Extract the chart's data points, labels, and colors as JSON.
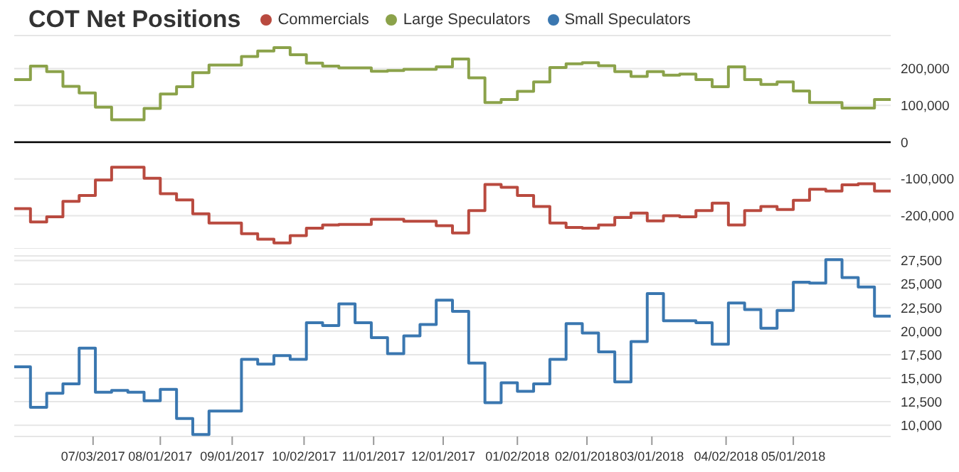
{
  "chart_data": [
    {
      "type": "step",
      "title": "COT Net Positions",
      "x": [
        "2017-05-30",
        "2017-06-06",
        "2017-06-13",
        "2017-06-20",
        "2017-06-27",
        "2017-07-04",
        "2017-07-11",
        "2017-07-18",
        "2017-07-25",
        "2017-08-01",
        "2017-08-08",
        "2017-08-15",
        "2017-08-22",
        "2017-08-29",
        "2017-09-05",
        "2017-09-12",
        "2017-09-19",
        "2017-09-26",
        "2017-10-03",
        "2017-10-10",
        "2017-10-17",
        "2017-10-24",
        "2017-10-31",
        "2017-11-07",
        "2017-11-14",
        "2017-11-21",
        "2017-11-28",
        "2017-12-05",
        "2017-12-12",
        "2017-12-19",
        "2017-12-26",
        "2018-01-02",
        "2018-01-09",
        "2018-01-16",
        "2018-01-23",
        "2018-01-30",
        "2018-02-06",
        "2018-02-13",
        "2018-02-20",
        "2018-02-27",
        "2018-03-06",
        "2018-03-13",
        "2018-03-20",
        "2018-03-27",
        "2018-04-03",
        "2018-04-10",
        "2018-04-17",
        "2018-04-24",
        "2018-05-01",
        "2018-05-08",
        "2018-05-15",
        "2018-05-22",
        "2018-05-29",
        "2018-06-05",
        "2018-06-12"
      ],
      "series": [
        {
          "name": "Commercials",
          "color": "#b94a3f",
          "values": [
            -181000,
            -217000,
            -203000,
            -161000,
            -145000,
            -103000,
            -68000,
            -68000,
            -98000,
            -140000,
            -157000,
            -195000,
            -220000,
            -220000,
            -249000,
            -264000,
            -274000,
            -254000,
            -234000,
            -225000,
            -224000,
            -224000,
            -210000,
            -210000,
            -215000,
            -215000,
            -227000,
            -247000,
            -186000,
            -115000,
            -123000,
            -145000,
            -175000,
            -220000,
            -232000,
            -234000,
            -225000,
            -205000,
            -193000,
            -214000,
            -200000,
            -203000,
            -186000,
            -166000,
            -225000,
            -186000,
            -175000,
            -183000,
            -158000,
            -128000,
            -133000,
            -116000,
            -113000,
            -133000,
            -133000
          ]
        },
        {
          "name": "Large Speculators",
          "color": "#8ba24a",
          "values": [
            170000,
            207000,
            192000,
            152000,
            134000,
            95000,
            61000,
            61000,
            92000,
            131000,
            151000,
            189000,
            210000,
            210000,
            233000,
            248000,
            257000,
            238000,
            215000,
            207000,
            202000,
            202000,
            193000,
            195000,
            198000,
            198000,
            205000,
            226000,
            175000,
            108000,
            116000,
            138000,
            164000,
            203000,
            213000,
            216000,
            208000,
            192000,
            179000,
            192000,
            182000,
            185000,
            170000,
            151000,
            205000,
            170000,
            157000,
            164000,
            139000,
            108000,
            108000,
            93000,
            93000,
            116000,
            116000
          ]
        }
      ],
      "xlim": [
        "2017-05-30",
        "2018-06-12"
      ],
      "ylim": [
        -290000,
        290000
      ],
      "yticks": [
        {
          "value": -200000,
          "label": "-200,000"
        },
        {
          "value": -100000,
          "label": "-100,000"
        },
        0,
        {
          "value": 100000,
          "label": "100,000"
        },
        {
          "value": 200000,
          "label": "200,000"
        }
      ],
      "ref_lines": [
        {
          "axis": "y",
          "value": 0,
          "color": "#000000"
        }
      ],
      "grid": "y",
      "legend": "top",
      "marker": "none",
      "line_style": "solid",
      "tick_labels": "y"
    },
    {
      "type": "step",
      "x": [
        "2017-05-30",
        "2017-06-06",
        "2017-06-13",
        "2017-06-20",
        "2017-06-27",
        "2017-07-04",
        "2017-07-11",
        "2017-07-18",
        "2017-07-25",
        "2017-08-01",
        "2017-08-08",
        "2017-08-15",
        "2017-08-22",
        "2017-08-29",
        "2017-09-05",
        "2017-09-12",
        "2017-09-19",
        "2017-09-26",
        "2017-10-03",
        "2017-10-10",
        "2017-10-17",
        "2017-10-24",
        "2017-10-31",
        "2017-11-07",
        "2017-11-14",
        "2017-11-21",
        "2017-11-28",
        "2017-12-05",
        "2017-12-12",
        "2017-12-19",
        "2017-12-26",
        "2018-01-02",
        "2018-01-09",
        "2018-01-16",
        "2018-01-23",
        "2018-01-30",
        "2018-02-06",
        "2018-02-13",
        "2018-02-20",
        "2018-02-27",
        "2018-03-06",
        "2018-03-13",
        "2018-03-20",
        "2018-03-27",
        "2018-04-03",
        "2018-04-10",
        "2018-04-17",
        "2018-04-24",
        "2018-05-01",
        "2018-05-08",
        "2018-05-15",
        "2018-05-22",
        "2018-05-29",
        "2018-06-05",
        "2018-06-12"
      ],
      "series": [
        {
          "name": "Small Speculators",
          "color": "#3a77b0",
          "values": [
            16200,
            11900,
            13400,
            14400,
            18200,
            13500,
            13700,
            13500,
            12600,
            13800,
            10700,
            9000,
            11500,
            11500,
            17000,
            16500,
            17400,
            17000,
            20900,
            20600,
            22900,
            20900,
            19300,
            17600,
            19500,
            20700,
            23300,
            22100,
            16600,
            12400,
            14500,
            13600,
            14400,
            17000,
            20800,
            19800,
            17800,
            14600,
            18900,
            24000,
            21100,
            21100,
            20900,
            18600,
            23000,
            22300,
            20300,
            22200,
            25200,
            25100,
            27600,
            25700,
            24700,
            21600,
            21600
          ]
        }
      ],
      "xlim": [
        "2017-05-30",
        "2018-06-12"
      ],
      "xticks": [
        {
          "value": "2017-07-03",
          "label": "07/03/2017"
        },
        {
          "value": "2017-08-01",
          "label": "08/01/2017"
        },
        {
          "value": "2017-09-01",
          "label": "09/01/2017"
        },
        {
          "value": "2017-10-02",
          "label": "10/02/2017"
        },
        {
          "value": "2017-11-01",
          "label": "11/01/2017"
        },
        {
          "value": "2017-12-01",
          "label": "12/01/2017"
        },
        {
          "value": "2018-01-02",
          "label": "01/02/2018"
        },
        {
          "value": "2018-02-01",
          "label": "02/01/2018"
        },
        {
          "value": "2018-03-01",
          "label": "03/01/2018"
        },
        {
          "value": "2018-04-02",
          "label": "04/02/2018"
        },
        {
          "value": "2018-05-01",
          "label": "05/01/2018"
        }
      ],
      "ylim": [
        8800,
        28000
      ],
      "yticks": [
        {
          "value": 10000,
          "label": "10,000"
        },
        {
          "value": 12500,
          "label": "12,500"
        },
        {
          "value": 15000,
          "label": "15,000"
        },
        {
          "value": 17500,
          "label": "17,500"
        },
        {
          "value": 20000,
          "label": "20,000"
        },
        {
          "value": 22500,
          "label": "22,500"
        },
        {
          "value": 25000,
          "label": "25,000"
        },
        {
          "value": 27500,
          "label": "27,500"
        }
      ],
      "grid": "y",
      "legend": "top",
      "marker": "none",
      "line_style": "solid"
    }
  ]
}
